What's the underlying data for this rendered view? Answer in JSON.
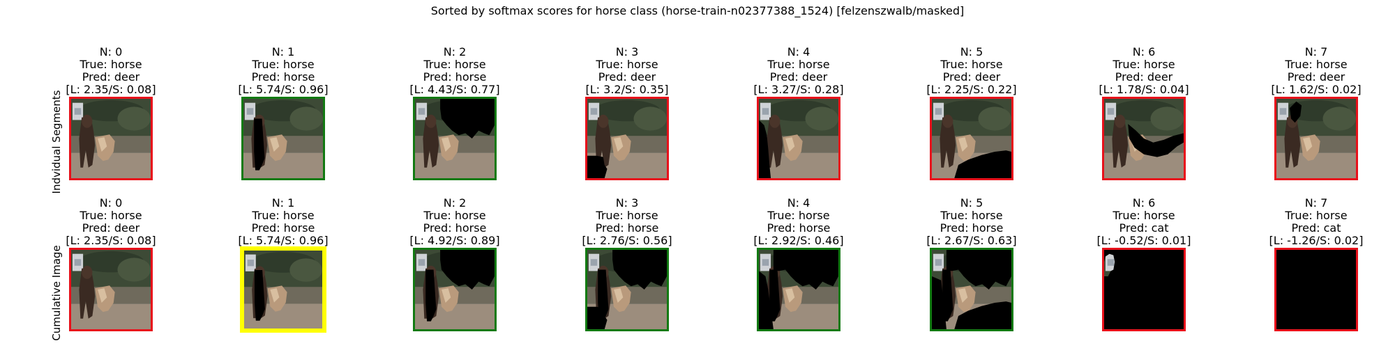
{
  "title": "Sorted by softmax scores for horse class (horse-train-n02377388_1524) [felzenszwalb/masked]",
  "row_labels": [
    "Indvidual Segments",
    "Cumulative Image"
  ],
  "colors": {
    "red": "#e8111b",
    "green": "#127a12",
    "yellow": "#ffff00"
  },
  "rows": [
    {
      "name": "individual-segments",
      "cells": [
        {
          "n": "N: 0",
          "true": "True: horse",
          "pred": "Pred: deer",
          "scores": "[L: 2.35/S: 0.08]",
          "border": "red"
        },
        {
          "n": "N: 1",
          "true": "True: horse",
          "pred": "Pred: horse",
          "scores": "[L: 5.74/S: 0.96]",
          "border": "green"
        },
        {
          "n": "N: 2",
          "true": "True: horse",
          "pred": "Pred: horse",
          "scores": "[L: 4.43/S: 0.77]",
          "border": "green"
        },
        {
          "n": "N: 3",
          "true": "True: horse",
          "pred": "Pred: deer",
          "scores": "[L: 3.2/S: 0.35]",
          "border": "red"
        },
        {
          "n": "N: 4",
          "true": "True: horse",
          "pred": "Pred: deer",
          "scores": "[L: 3.27/S: 0.28]",
          "border": "red"
        },
        {
          "n": "N: 5",
          "true": "True: horse",
          "pred": "Pred: deer",
          "scores": "[L: 2.25/S: 0.22]",
          "border": "red"
        },
        {
          "n": "N: 6",
          "true": "True: horse",
          "pred": "Pred: deer",
          "scores": "[L: 1.78/S: 0.04]",
          "border": "red"
        },
        {
          "n": "N: 7",
          "true": "True: horse",
          "pred": "Pred: deer",
          "scores": "[L: 1.62/S: 0.02]",
          "border": "red"
        }
      ]
    },
    {
      "name": "cumulative-image",
      "cells": [
        {
          "n": "N: 0",
          "true": "True: horse",
          "pred": "Pred: deer",
          "scores": "[L: 2.35/S: 0.08]",
          "border": "red"
        },
        {
          "n": "N: 1",
          "true": "True: horse",
          "pred": "Pred: horse",
          "scores": "[L: 5.74/S: 0.96]",
          "border": "yellow"
        },
        {
          "n": "N: 2",
          "true": "True: horse",
          "pred": "Pred: horse",
          "scores": "[L: 4.92/S: 0.89]",
          "border": "green"
        },
        {
          "n": "N: 3",
          "true": "True: horse",
          "pred": "Pred: horse",
          "scores": "[L: 2.76/S: 0.56]",
          "border": "green"
        },
        {
          "n": "N: 4",
          "true": "True: horse",
          "pred": "Pred: horse",
          "scores": "[L: 2.92/S: 0.46]",
          "border": "green"
        },
        {
          "n": "N: 5",
          "true": "True: horse",
          "pred": "Pred: horse",
          "scores": "[L: 2.67/S: 0.63]",
          "border": "green"
        },
        {
          "n": "N: 6",
          "true": "True: horse",
          "pred": "Pred: cat",
          "scores": "[L: -0.52/S: 0.01]",
          "border": "red"
        },
        {
          "n": "N: 7",
          "true": "True: horse",
          "pred": "Pred: cat",
          "scores": "[L: -1.26/S: 0.02]",
          "border": "red"
        }
      ]
    }
  ]
}
